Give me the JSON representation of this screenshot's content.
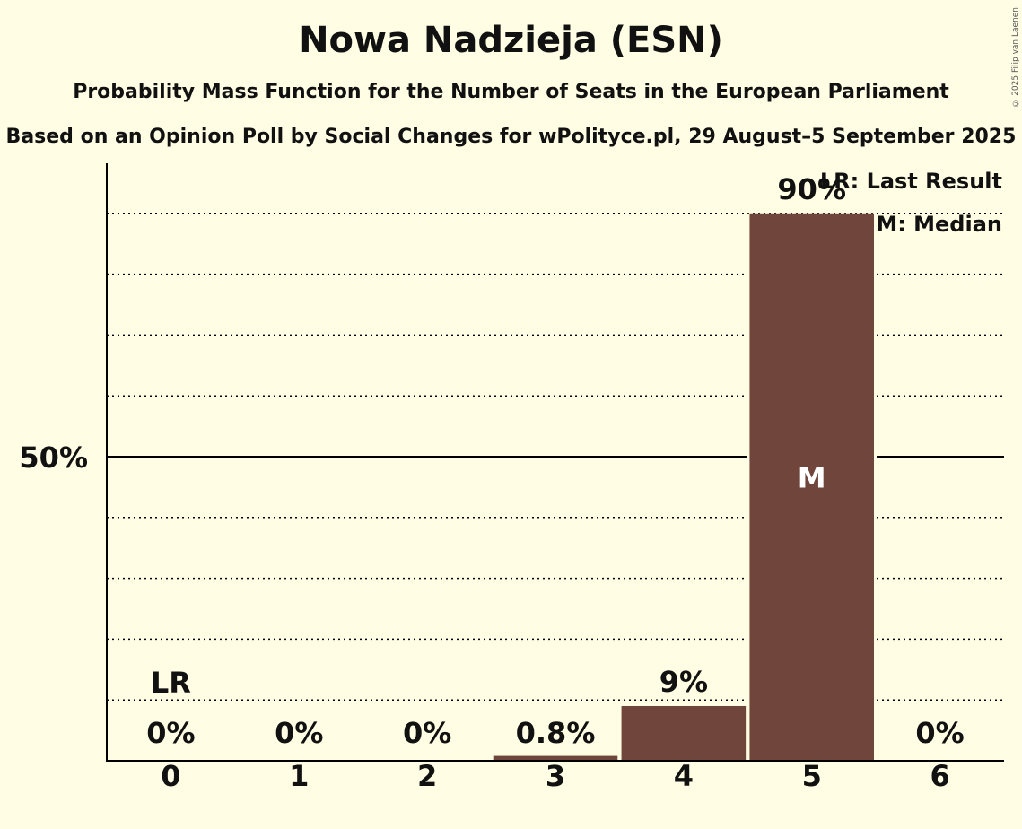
{
  "title": "Nowa Nadzieja (ESN)",
  "subtitle": "Probability Mass Function for the Number of Seats in the European Parliament",
  "subtitle2": "Based on an Opinion Poll by Social Changes for wPolityce.pl, 29 August–5 September 2025",
  "copyright": "© 2025 Filip van Laenen",
  "colors": {
    "bar": "#70463c",
    "background": "#fffde3",
    "axis": "#000000"
  },
  "legend": {
    "lr": "LR: Last Result",
    "m": "M: Median"
  },
  "chart_data": {
    "type": "bar",
    "categories": [
      "0",
      "1",
      "2",
      "3",
      "4",
      "5",
      "6"
    ],
    "values": [
      0,
      0,
      0,
      0.8,
      9,
      90,
      0
    ],
    "value_labels": [
      "0%",
      "0%",
      "0%",
      "0.8%",
      "9%",
      "90%",
      "0%"
    ],
    "ylim": [
      0,
      100
    ],
    "y_tick_label": "50%",
    "y_tick_value": 50,
    "gridlines_dotted": [
      10,
      20,
      30,
      40,
      60,
      70,
      80,
      90
    ],
    "last_result_category": "0",
    "last_result_label": "LR",
    "median_category": "5",
    "median_label": "M"
  }
}
